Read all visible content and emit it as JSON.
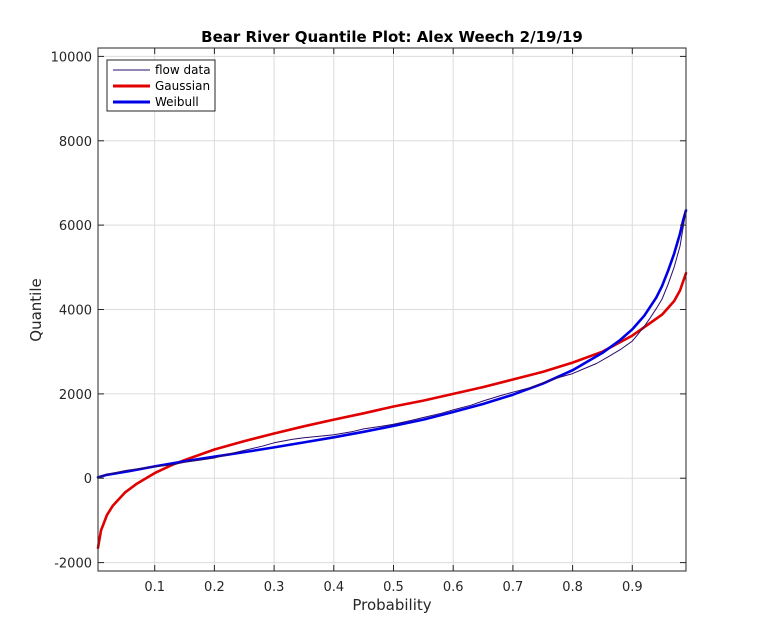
{
  "chart_data": {
    "type": "line",
    "title": "Bear River Quantile Plot: Alex Weech 2/19/19",
    "xlabel": "Probability",
    "ylabel": "Quantile",
    "xlim": [
      0.005,
      0.99
    ],
    "ylim": [
      -2200,
      10200
    ],
    "xticks": [
      0.1,
      0.2,
      0.3,
      0.4,
      0.5,
      0.6,
      0.7,
      0.8,
      0.9
    ],
    "xtick_labels": [
      "0.1",
      "0.2",
      "0.3",
      "0.4",
      "0.5",
      "0.6",
      "0.7",
      "0.8",
      "0.9"
    ],
    "yticks": [
      -2000,
      0,
      2000,
      4000,
      6000,
      8000,
      10000
    ],
    "ytick_labels": [
      "-2000",
      "0",
      "2000",
      "4000",
      "6000",
      "8000",
      "10000"
    ],
    "grid": true,
    "legend": "top-left",
    "series": [
      {
        "name": "flow data",
        "color": "#2b0a6e",
        "x": [
          0.005,
          0.02,
          0.05,
          0.08,
          0.1,
          0.13,
          0.15,
          0.18,
          0.2,
          0.22,
          0.25,
          0.28,
          0.3,
          0.33,
          0.35,
          0.38,
          0.4,
          0.43,
          0.45,
          0.48,
          0.5,
          0.53,
          0.55,
          0.58,
          0.6,
          0.63,
          0.65,
          0.68,
          0.7,
          0.73,
          0.75,
          0.78,
          0.8,
          0.82,
          0.84,
          0.86,
          0.88,
          0.9,
          0.91,
          0.92,
          0.93,
          0.94,
          0.95,
          0.96,
          0.97,
          0.98,
          0.99
        ],
        "y": [
          20,
          90,
          180,
          240,
          270,
          320,
          380,
          440,
          480,
          560,
          660,
          760,
          840,
          920,
          960,
          1000,
          1030,
          1100,
          1170,
          1230,
          1280,
          1370,
          1440,
          1540,
          1620,
          1730,
          1830,
          1960,
          2040,
          2150,
          2260,
          2400,
          2480,
          2600,
          2720,
          2880,
          3050,
          3250,
          3420,
          3600,
          3800,
          4020,
          4250,
          4600,
          5000,
          5500,
          6350
        ]
      },
      {
        "name": "Gaussian",
        "color": "#e00000",
        "x": [
          0.005,
          0.01,
          0.02,
          0.03,
          0.05,
          0.07,
          0.1,
          0.13,
          0.15,
          0.2,
          0.25,
          0.3,
          0.35,
          0.4,
          0.45,
          0.5,
          0.55,
          0.6,
          0.65,
          0.7,
          0.75,
          0.8,
          0.85,
          0.9,
          0.93,
          0.95,
          0.97,
          0.98,
          0.99
        ],
        "y": [
          -1650,
          -1240,
          -870,
          -650,
          -340,
          -130,
          120,
          320,
          430,
          680,
          880,
          1060,
          1230,
          1390,
          1540,
          1700,
          1840,
          2000,
          2160,
          2340,
          2520,
          2740,
          3000,
          3380,
          3680,
          3880,
          4200,
          4450,
          4860
        ]
      },
      {
        "name": "Weibull",
        "color": "#0000e6",
        "x": [
          0.005,
          0.02,
          0.05,
          0.1,
          0.15,
          0.2,
          0.25,
          0.3,
          0.35,
          0.4,
          0.45,
          0.5,
          0.55,
          0.6,
          0.65,
          0.7,
          0.75,
          0.8,
          0.85,
          0.88,
          0.9,
          0.92,
          0.94,
          0.95,
          0.96,
          0.97,
          0.98,
          0.985,
          0.99
        ],
        "y": [
          20,
          80,
          150,
          280,
          400,
          510,
          620,
          730,
          850,
          970,
          1100,
          1240,
          1390,
          1570,
          1760,
          1980,
          2240,
          2560,
          2970,
          3280,
          3530,
          3850,
          4280,
          4560,
          4920,
          5320,
          5800,
          6100,
          6350
        ]
      }
    ]
  }
}
